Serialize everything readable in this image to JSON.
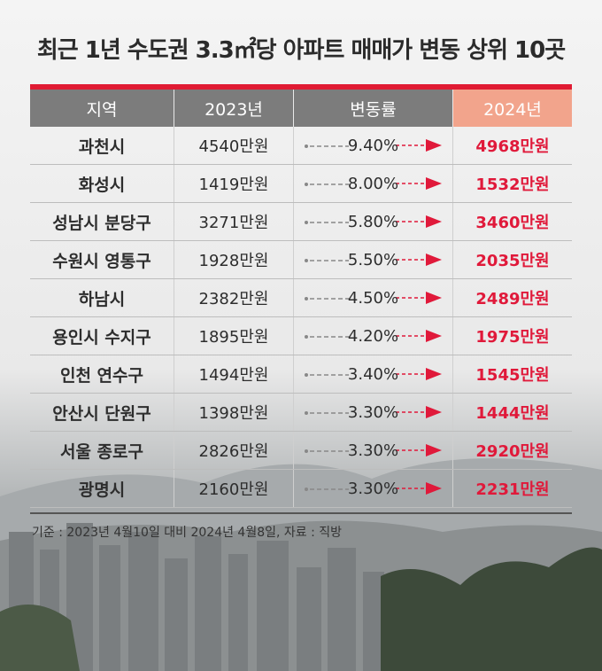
{
  "title": "최근 1년 수도권 3.3㎡당 아파트 매매가 변동 상위 10곳",
  "footnote": "기준 : 2023년 4월10일 대비 2024년 4월8일, 자료 : 직방",
  "colors": {
    "accent": "#e0193a",
    "header_bg": "#7c7c7c",
    "highlight_header": "#f2a48c"
  },
  "chart_data": {
    "type": "table",
    "columns": [
      "지역",
      "2023년",
      "변동률",
      "2024년"
    ],
    "rows": [
      [
        "과천시",
        "4540만원",
        "9.40%",
        "4968만원"
      ],
      [
        "화성시",
        "1419만원",
        "8.00%",
        "1532만원"
      ],
      [
        "성남시 분당구",
        "3271만원",
        "5.80%",
        "3460만원"
      ],
      [
        "수원시 영통구",
        "1928만원",
        "5.50%",
        "2035만원"
      ],
      [
        "하남시",
        "2382만원",
        "4.50%",
        "2489만원"
      ],
      [
        "용인시 수지구",
        "1895만원",
        "4.20%",
        "1975만원"
      ],
      [
        "인천 연수구",
        "1494만원",
        "3.40%",
        "1545만원"
      ],
      [
        "안산시 단원구",
        "1398만원",
        "3.30%",
        "1444만원"
      ],
      [
        "서울 종로구",
        "2826만원",
        "3.30%",
        "2920만원"
      ],
      [
        "광명시",
        "2160만원",
        "3.30%",
        "2231만원"
      ]
    ]
  }
}
